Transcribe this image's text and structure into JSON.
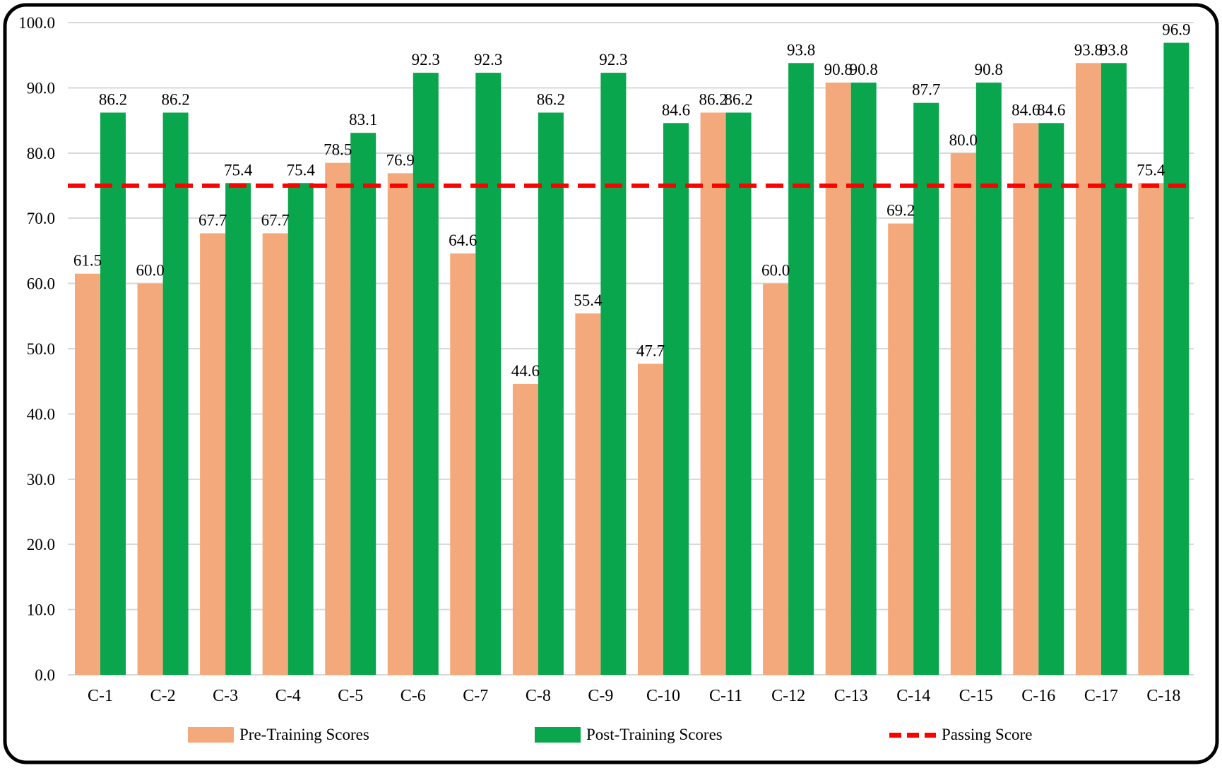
{
  "chart_data": {
    "type": "bar",
    "title": "",
    "xlabel": "",
    "ylabel": "",
    "categories": [
      "C-1",
      "C-2",
      "C-3",
      "C-4",
      "C-5",
      "C-6",
      "C-7",
      "C-8",
      "C-9",
      "C-10",
      "C-11",
      "C-12",
      "C-13",
      "C-14",
      "C-15",
      "C-16",
      "C-17",
      "C-18"
    ],
    "series": [
      {
        "name": "Pre-Training Scores",
        "color": "#F4A97C",
        "values": [
          61.5,
          60.0,
          67.7,
          67.7,
          78.5,
          76.9,
          64.6,
          44.6,
          55.4,
          47.7,
          86.2,
          60.0,
          90.8,
          69.2,
          80.0,
          84.6,
          93.8,
          75.4
        ]
      },
      {
        "name": "Post-Training Scores",
        "color": "#0AA64D",
        "values": [
          86.2,
          86.2,
          75.4,
          75.4,
          83.1,
          92.3,
          92.3,
          86.2,
          92.3,
          84.6,
          86.2,
          93.8,
          90.8,
          87.7,
          90.8,
          84.6,
          93.8,
          96.9
        ]
      }
    ],
    "reference_line": {
      "name": "Passing Score",
      "value": 75,
      "color": "#FF0000",
      "style": "dashed"
    },
    "ylim": [
      0,
      100
    ],
    "ytick_labels": [
      "0.0",
      "10.0",
      "20.0",
      "30.0",
      "40.0",
      "50.0",
      "60.0",
      "70.0",
      "80.0",
      "90.0",
      "100.0"
    ],
    "grid": true,
    "gridline_color": "#D9D9D9",
    "value_labels": true,
    "legend_position": "bottom",
    "frame_color": "#000000"
  }
}
